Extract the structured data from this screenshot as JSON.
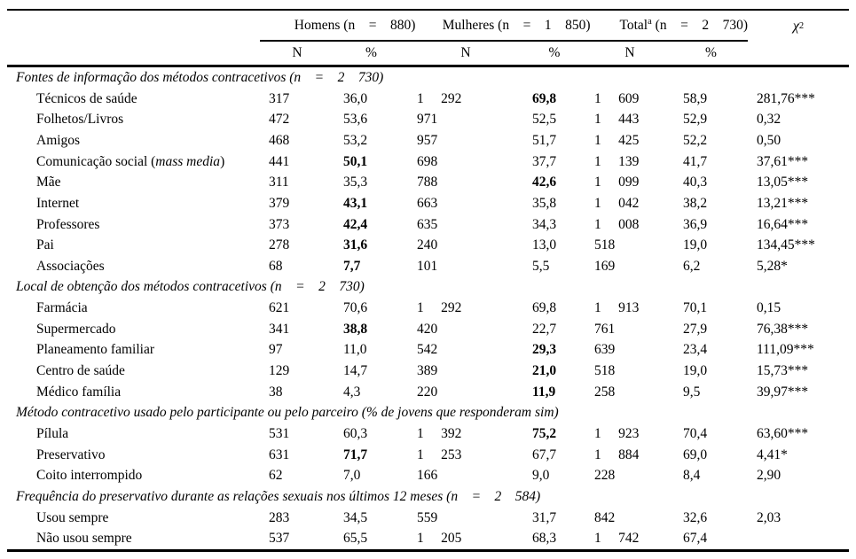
{
  "table": {
    "header": {
      "homens": "Homens (n    =    880)",
      "mulheres": "Mulheres (n    =    1    850)",
      "total_base": "Total",
      "total_sup": "a",
      "total_rest": " (n    =    2    730)",
      "chi_base": "χ",
      "chi_sup": "2",
      "sub_n": "N",
      "sub_pct": "%"
    },
    "rows": [
      {
        "type": "section",
        "label": "Fontes de informação dos métodos contracetivos (n    =    2    730)"
      },
      {
        "type": "item",
        "label": "Técnicos de saúde",
        "hn": "317",
        "hp": "36,0",
        "mn": "1     292",
        "mp": "69,8",
        "mpb": true,
        "tn": "1     609",
        "tp": "58,9",
        "chi": "281,76***"
      },
      {
        "type": "item",
        "label": "Folhetos/Livros",
        "hn": "472",
        "hp": "53,6",
        "mn": "971",
        "mp": "52,5",
        "tn": "1     443",
        "tp": "52,9",
        "chi": "0,32"
      },
      {
        "type": "item",
        "label": "Amigos",
        "hn": "468",
        "hp": "53,2",
        "mn": "957",
        "mp": "51,7",
        "tn": "1     425",
        "tp": "52,2",
        "chi": "0,50"
      },
      {
        "type": "item",
        "label": "Comunicação social (",
        "label_em": "mass media",
        "label_end": ")",
        "hn": "441",
        "hp": "50,1",
        "hpb": true,
        "mn": "698",
        "mp": "37,7",
        "tn": "1     139",
        "tp": "41,7",
        "chi": "37,61***"
      },
      {
        "type": "item",
        "label": "Mãe",
        "hn": "311",
        "hp": "35,3",
        "mn": "788",
        "mp": "42,6",
        "mpb": true,
        "tn": "1     099",
        "tp": "40,3",
        "chi": "13,05***"
      },
      {
        "type": "item",
        "label": "Internet",
        "hn": "379",
        "hp": "43,1",
        "hpb": true,
        "mn": "663",
        "mp": "35,8",
        "tn": "1     042",
        "tp": "38,2",
        "chi": "13,21***"
      },
      {
        "type": "item",
        "label": "Professores",
        "hn": "373",
        "hp": "42,4",
        "hpb": true,
        "mn": "635",
        "mp": "34,3",
        "tn": "1     008",
        "tp": "36,9",
        "chi": "16,64***"
      },
      {
        "type": "item",
        "label": "Pai",
        "hn": "278",
        "hp": "31,6",
        "hpb": true,
        "mn": "240",
        "mp": "13,0",
        "tn": "518",
        "tp": "19,0",
        "chi": "134,45***"
      },
      {
        "type": "item",
        "label": "Associações",
        "hn": "68",
        "hp": "7,7",
        "hpb": true,
        "mn": "101",
        "mp": "5,5",
        "tn": "169",
        "tp": "6,2",
        "chi": "5,28*"
      },
      {
        "type": "section",
        "label": "Local de obtenção dos métodos contracetivos (n    =    2    730)"
      },
      {
        "type": "item",
        "label": "Farmácia",
        "hn": "621",
        "hp": "70,6",
        "mn": "1     292",
        "mp": "69,8",
        "tn": "1     913",
        "tp": "70,1",
        "chi": "0,15"
      },
      {
        "type": "item",
        "label": "Supermercado",
        "hn": "341",
        "hp": "38,8",
        "hpb": true,
        "mn": "420",
        "mp": "22,7",
        "tn": "761",
        "tp": "27,9",
        "chi": "76,38***"
      },
      {
        "type": "item",
        "label": "Planeamento familiar",
        "hn": "97",
        "hp": "11,0",
        "mn": "542",
        "mp": "29,3",
        "mpb": true,
        "tn": "639",
        "tp": "23,4",
        "chi": "111,09***"
      },
      {
        "type": "item",
        "label": "Centro de saúde",
        "hn": "129",
        "hp": "14,7",
        "mn": "389",
        "mp": "21,0",
        "mpb": true,
        "tn": "518",
        "tp": "19,0",
        "chi": "15,73***"
      },
      {
        "type": "item",
        "label": "Médico família",
        "hn": "38",
        "hp": "4,3",
        "mn": "220",
        "mp": "11,9",
        "mpb": true,
        "tn": "258",
        "tp": "9,5",
        "chi": "39,97***"
      },
      {
        "type": "section",
        "label": "Método contracetivo usado pelo participante ou pelo parceiro (% de jovens que responderam sim)"
      },
      {
        "type": "item",
        "label": "Pílula",
        "hn": "531",
        "hp": "60,3",
        "mn": "1     392",
        "mp": "75,2",
        "mpb": true,
        "tn": "1     923",
        "tp": "70,4",
        "chi": "63,60***"
      },
      {
        "type": "item",
        "label": "Preservativo",
        "hn": "631",
        "hp": "71,7",
        "hpb": true,
        "mn": "1     253",
        "mp": "67,7",
        "tn": "1     884",
        "tp": "69,0",
        "chi": "4,41*"
      },
      {
        "type": "item",
        "label": "Coito interrompido",
        "hn": "62",
        "hp": "7,0",
        "mn": "166",
        "mp": "9,0",
        "tn": "228",
        "tp": "8,4",
        "chi": "2,90"
      },
      {
        "type": "section",
        "label": "Frequência do preservativo durante as relações sexuais nos últimos 12 meses (n    =    2    584)"
      },
      {
        "type": "item",
        "label": "Usou sempre",
        "hn": "283",
        "hp": "34,5",
        "mn": "559",
        "mp": "31,7",
        "tn": "842",
        "tp": "32,6",
        "chi": "2,03"
      },
      {
        "type": "item",
        "label": "Não usou sempre",
        "hn": "537",
        "hp": "65,5",
        "mn": "1     205",
        "mp": "68,3",
        "tn": "1     742",
        "tp": "67,4",
        "chi": ""
      }
    ]
  }
}
